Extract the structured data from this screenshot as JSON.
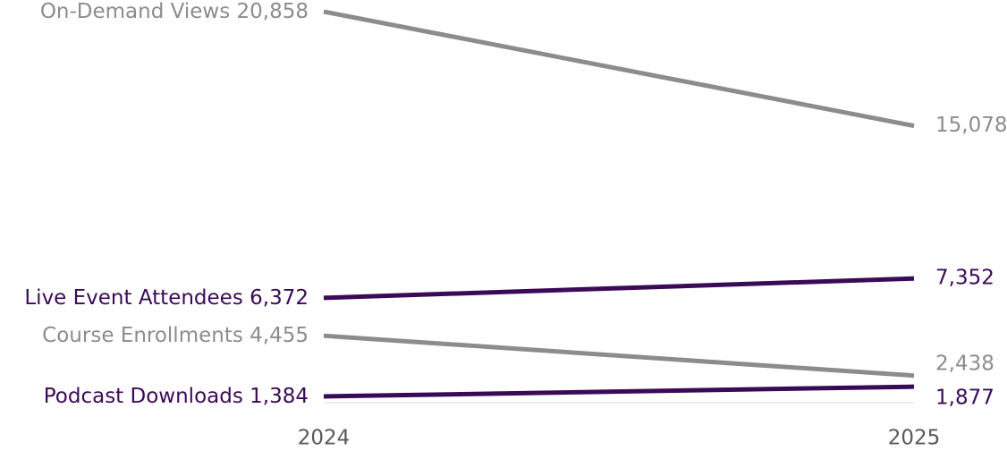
{
  "chart_data": {
    "type": "slope",
    "categories": [
      "2024",
      "2025"
    ],
    "series": [
      {
        "name": "On-Demand Views",
        "color": "#8c8c8c",
        "values": [
          20858,
          15078
        ],
        "value_labels": [
          "20,858",
          "15,078"
        ]
      },
      {
        "name": "Live Event Attendees",
        "color": "#3b0a57",
        "values": [
          6372,
          7352
        ],
        "value_labels": [
          "6,372",
          "7,352"
        ]
      },
      {
        "name": "Course Enrollments",
        "color": "#8c8c8c",
        "values": [
          4455,
          2438
        ],
        "value_labels": [
          "4,455",
          "2,438"
        ]
      },
      {
        "name": "Podcast Downloads",
        "color": "#3b0a57",
        "values": [
          1384,
          1877
        ],
        "value_labels": [
          "1,384",
          "1,877"
        ]
      }
    ]
  }
}
